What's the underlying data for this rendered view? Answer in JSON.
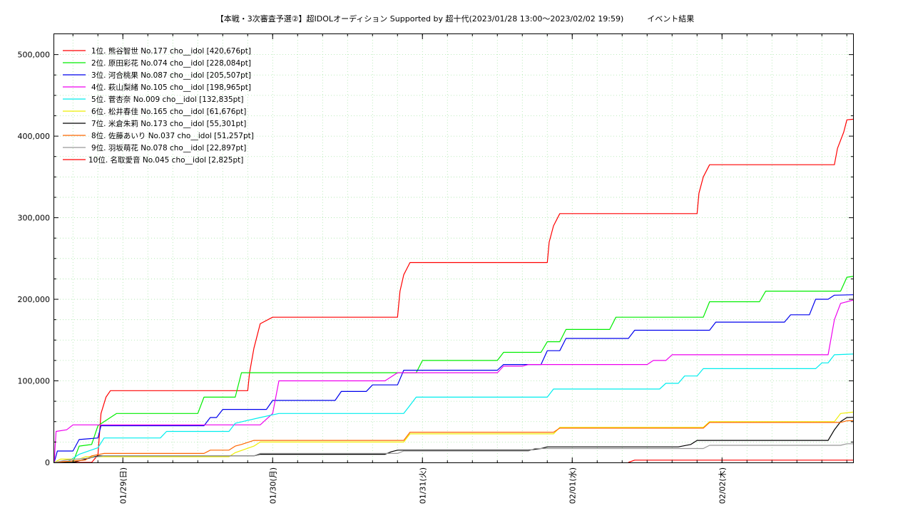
{
  "chart_data": {
    "type": "line",
    "title": "【本戦・3次審査予選②】超IDOLオーディション Supported by 超十代(2023/01/28 13:00～2023/02/02 19:59)　　　イベント結果",
    "xlabel": "",
    "ylabel": "",
    "x_range_hours": [
      0,
      128
    ],
    "ylim": [
      0,
      525000
    ],
    "y_ticks": [
      0,
      100000,
      200000,
      300000,
      400000,
      500000
    ],
    "y_tick_labels": [
      "0",
      "100,000",
      "200,000",
      "300,000",
      "400,000",
      "500,000"
    ],
    "x_ticks": [
      {
        "hour": 11,
        "label": "01/29(日)"
      },
      {
        "hour": 35,
        "label": "01/30(月)"
      },
      {
        "hour": 59,
        "label": "01/31(火)"
      },
      {
        "hour": 83,
        "label": "02/01(水)"
      },
      {
        "hour": 107,
        "label": "02/02(木)"
      }
    ],
    "grid": true,
    "legend_position": "top-left",
    "series": [
      {
        "name": "1位. 熊谷智世 No.177 cho__idol [420,676pt]",
        "color": "#ff0000",
        "points": [
          [
            0,
            0
          ],
          [
            6,
            0
          ],
          [
            7,
            9000
          ],
          [
            7.5,
            60000
          ],
          [
            8.3,
            80000
          ],
          [
            9,
            88000
          ],
          [
            31,
            88000
          ],
          [
            31.3,
            110000
          ],
          [
            32,
            140000
          ],
          [
            33,
            170000
          ],
          [
            35,
            178000
          ],
          [
            55,
            178000
          ],
          [
            55.4,
            210000
          ],
          [
            56,
            230000
          ],
          [
            57,
            245000
          ],
          [
            79,
            245000
          ],
          [
            79.3,
            270000
          ],
          [
            80,
            290000
          ],
          [
            81,
            305000
          ],
          [
            103,
            305000
          ],
          [
            103.3,
            330000
          ],
          [
            104,
            350000
          ],
          [
            105,
            365000
          ],
          [
            125,
            365000
          ],
          [
            125.5,
            385000
          ],
          [
            126.5,
            405000
          ],
          [
            127,
            420000
          ],
          [
            128,
            420676
          ]
        ]
      },
      {
        "name": "2位. 原田彩花 No.074 cho__idol [228,084pt]",
        "color": "#00ee00",
        "points": [
          [
            0,
            0
          ],
          [
            3,
            0
          ],
          [
            4,
            20000
          ],
          [
            6,
            22000
          ],
          [
            7,
            45000
          ],
          [
            10,
            60000
          ],
          [
            23,
            60000
          ],
          [
            24,
            80000
          ],
          [
            29,
            80000
          ],
          [
            30,
            110000
          ],
          [
            58,
            110000
          ],
          [
            59,
            125000
          ],
          [
            71,
            125000
          ],
          [
            72,
            135000
          ],
          [
            78,
            135000
          ],
          [
            79,
            148000
          ],
          [
            81,
            148000
          ],
          [
            82,
            163000
          ],
          [
            89,
            163000
          ],
          [
            90,
            178000
          ],
          [
            104,
            178000
          ],
          [
            105,
            197000
          ],
          [
            113,
            197000
          ],
          [
            114,
            210000
          ],
          [
            126,
            210000
          ],
          [
            127,
            227000
          ],
          [
            128,
            228084
          ]
        ]
      },
      {
        "name": "3位. 河合桃果 No.087 cho__idol [205,507pt]",
        "color": "#0000ee",
        "points": [
          [
            0,
            0
          ],
          [
            0.5,
            14000
          ],
          [
            3,
            14000
          ],
          [
            4,
            28000
          ],
          [
            7,
            30000
          ],
          [
            7.5,
            45000
          ],
          [
            24,
            45000
          ],
          [
            25,
            55000
          ],
          [
            26,
            55000
          ],
          [
            27,
            65000
          ],
          [
            34,
            65000
          ],
          [
            35,
            76000
          ],
          [
            45,
            76000
          ],
          [
            46,
            87000
          ],
          [
            50,
            87000
          ],
          [
            51,
            95000
          ],
          [
            55,
            95000
          ],
          [
            56,
            113000
          ],
          [
            71,
            113000
          ],
          [
            72,
            120000
          ],
          [
            78,
            120000
          ],
          [
            79,
            137000
          ],
          [
            81,
            137000
          ],
          [
            82,
            152000
          ],
          [
            92,
            152000
          ],
          [
            93,
            162000
          ],
          [
            105,
            162000
          ],
          [
            106,
            172000
          ],
          [
            117,
            172000
          ],
          [
            118,
            181000
          ],
          [
            121,
            181000
          ],
          [
            122,
            200000
          ],
          [
            124,
            200000
          ],
          [
            125,
            205000
          ],
          [
            128,
            205507
          ]
        ]
      },
      {
        "name": "4位. 萩山梨緒 No.105 cho__idol [198,965pt]",
        "color": "#ee00ee",
        "points": [
          [
            0,
            0
          ],
          [
            0.3,
            38000
          ],
          [
            2,
            40000
          ],
          [
            3,
            46000
          ],
          [
            33,
            46000
          ],
          [
            35,
            60000
          ],
          [
            36,
            100000
          ],
          [
            53,
            100000
          ],
          [
            55,
            110000
          ],
          [
            71,
            110000
          ],
          [
            72,
            118000
          ],
          [
            75,
            118000
          ],
          [
            76,
            120000
          ],
          [
            95,
            120000
          ],
          [
            96,
            125000
          ],
          [
            98,
            125000
          ],
          [
            99,
            132000
          ],
          [
            124,
            132000
          ],
          [
            125,
            175000
          ],
          [
            126,
            195000
          ],
          [
            128,
            198965
          ]
        ]
      },
      {
        "name": "5位. 菅杏奈 No.009 cho__idol [132,835pt]",
        "color": "#00eeee",
        "points": [
          [
            0,
            0
          ],
          [
            2,
            0
          ],
          [
            3,
            5000
          ],
          [
            4,
            10000
          ],
          [
            7,
            18000
          ],
          [
            8,
            30000
          ],
          [
            17,
            30000
          ],
          [
            18,
            38000
          ],
          [
            28,
            38000
          ],
          [
            29,
            48000
          ],
          [
            33,
            55000
          ],
          [
            36,
            60000
          ],
          [
            56,
            60000
          ],
          [
            57,
            70000
          ],
          [
            58,
            80000
          ],
          [
            79,
            80000
          ],
          [
            80,
            90000
          ],
          [
            97,
            90000
          ],
          [
            98,
            97000
          ],
          [
            100,
            97000
          ],
          [
            101,
            106000
          ],
          [
            103,
            106000
          ],
          [
            104,
            115000
          ],
          [
            122,
            115000
          ],
          [
            123,
            122000
          ],
          [
            124,
            122000
          ],
          [
            125,
            132000
          ],
          [
            128,
            132835
          ]
        ]
      },
      {
        "name": "6位. 松井春佳 No.165 cho__idol [61,676pt]",
        "color": "#eeee00",
        "points": [
          [
            0,
            0
          ],
          [
            1,
            4000
          ],
          [
            4,
            4000
          ],
          [
            5,
            7000
          ],
          [
            28,
            7000
          ],
          [
            29,
            12000
          ],
          [
            32,
            20000
          ],
          [
            33,
            25000
          ],
          [
            56,
            25000
          ],
          [
            57,
            35000
          ],
          [
            80,
            35000
          ],
          [
            81,
            43000
          ],
          [
            104,
            43000
          ],
          [
            105,
            50000
          ],
          [
            125,
            50000
          ],
          [
            126,
            60000
          ],
          [
            128,
            61676
          ]
        ]
      },
      {
        "name": "7位. 米倉朱莉 No.173 cho__idol [55,301pt]",
        "color": "#000000",
        "points": [
          [
            0,
            0
          ],
          [
            3,
            0
          ],
          [
            5,
            4000
          ],
          [
            7,
            8000
          ],
          [
            32,
            8000
          ],
          [
            33,
            10000
          ],
          [
            53,
            10000
          ],
          [
            54,
            13000
          ],
          [
            55,
            15000
          ],
          [
            76,
            15000
          ],
          [
            78,
            17000
          ],
          [
            79,
            19000
          ],
          [
            100,
            19000
          ],
          [
            102,
            22000
          ],
          [
            103,
            27000
          ],
          [
            124,
            27000
          ],
          [
            125,
            40000
          ],
          [
            126,
            50000
          ],
          [
            127,
            55000
          ],
          [
            128,
            55301
          ]
        ]
      },
      {
        "name": "8位. 佐藤あいり No.037 cho__idol [51,257pt]",
        "color": "#ff6600",
        "points": [
          [
            0,
            0
          ],
          [
            5,
            3000
          ],
          [
            6,
            8000
          ],
          [
            8,
            11000
          ],
          [
            24,
            11000
          ],
          [
            25,
            15000
          ],
          [
            28,
            15000
          ],
          [
            29,
            20000
          ],
          [
            30,
            22000
          ],
          [
            32,
            27000
          ],
          [
            56,
            27000
          ],
          [
            57,
            37000
          ],
          [
            80,
            37000
          ],
          [
            81,
            42000
          ],
          [
            104,
            42000
          ],
          [
            105,
            49000
          ],
          [
            126,
            49000
          ],
          [
            127,
            51000
          ],
          [
            128,
            51257
          ]
        ]
      },
      {
        "name": "9位. 羽坂萌花 No.078 cho__idol [22,897pt]",
        "color": "#999999",
        "points": [
          [
            0,
            0
          ],
          [
            2,
            3000
          ],
          [
            5,
            5000
          ],
          [
            8,
            8000
          ],
          [
            32,
            8000
          ],
          [
            33,
            11000
          ],
          [
            55,
            11000
          ],
          [
            56,
            14000
          ],
          [
            76,
            14000
          ],
          [
            77,
            17000
          ],
          [
            104,
            17000
          ],
          [
            105,
            21000
          ],
          [
            126,
            21000
          ],
          [
            127,
            22897
          ],
          [
            128,
            22897
          ]
        ]
      },
      {
        "name": "10位. 名取愛音 No.045 cho__idol [2,825pt]",
        "color": "#ff0000",
        "points": [
          [
            92,
            0
          ],
          [
            93,
            2800
          ],
          [
            128,
            2825
          ]
        ]
      }
    ]
  }
}
